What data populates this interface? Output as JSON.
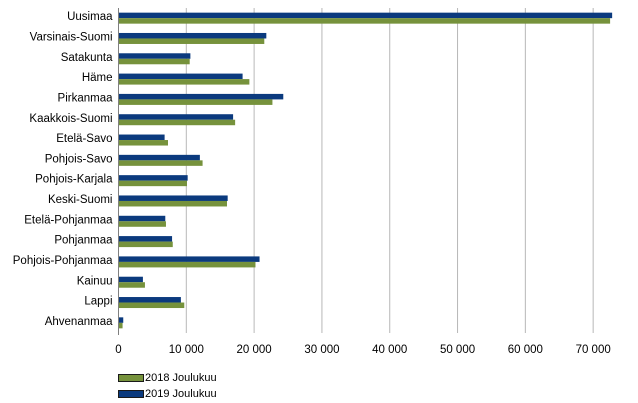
{
  "chart_data": {
    "type": "bar",
    "orientation": "horizontal",
    "title": "",
    "xlabel": "",
    "ylabel": "",
    "xlim": [
      0,
      73000
    ],
    "xticks": [
      0,
      10000,
      20000,
      30000,
      40000,
      50000,
      60000,
      70000
    ],
    "xtick_labels": [
      "0",
      "10 000",
      "20 000",
      "30 000",
      "40 000",
      "50 000",
      "60 000",
      "70 000"
    ],
    "grid": "vertical",
    "legend_position": "bottom-left",
    "categories": [
      "Uusimaa",
      "Varsinais-Suomi",
      "Satakunta",
      "Häme",
      "Pirkanmaa",
      "Kaakkois-Suomi",
      "Etelä-Savo",
      "Pohjois-Savo",
      "Pohjois-Karjala",
      "Keski-Suomi",
      "Etelä-Pohjanmaa",
      "Pohjanmaa",
      "Pohjois-Pohjanmaa",
      "Kainuu",
      "Lappi",
      "Ahvenanmaa"
    ],
    "series": [
      {
        "name": "2018 Joulukuu",
        "color": "#76923c",
        "values": [
          72500,
          21500,
          10500,
          19300,
          22700,
          17200,
          7300,
          12400,
          10100,
          16000,
          7000,
          8000,
          20200,
          3900,
          9700,
          600
        ]
      },
      {
        "name": "2019 Joulukuu",
        "color": "#0b3a7e",
        "values": [
          72800,
          21800,
          10600,
          18300,
          24300,
          16900,
          6800,
          12000,
          10200,
          16100,
          6900,
          7900,
          20800,
          3600,
          9200,
          700
        ]
      }
    ]
  }
}
